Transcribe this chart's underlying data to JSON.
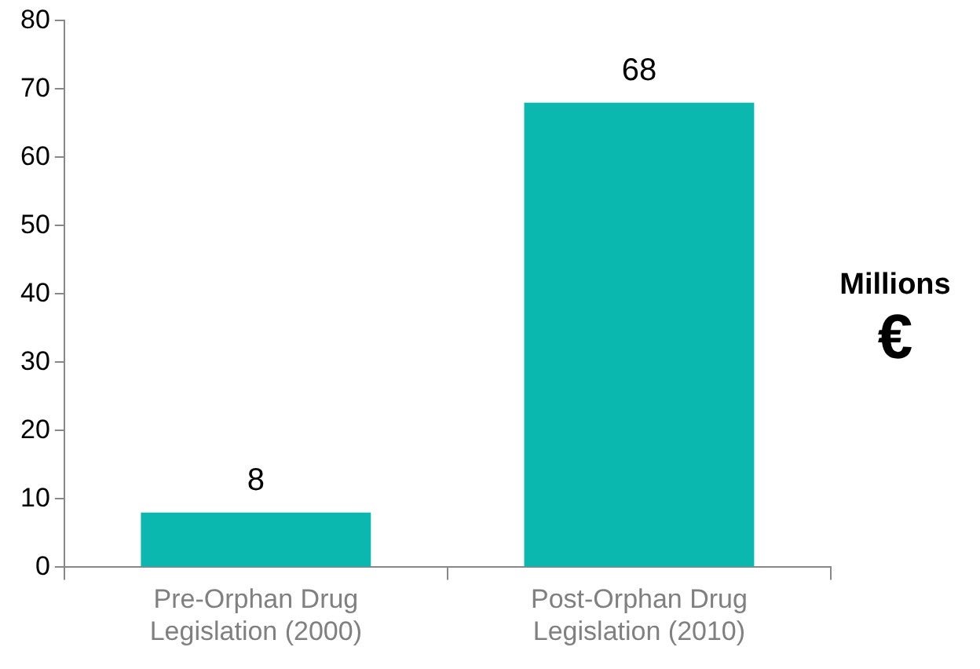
{
  "chart_data": {
    "type": "bar",
    "ylabel": "Millions €",
    "categories": [
      "Pre-Orphan Drug Legislation (2000)",
      "Post-Orphan Drug Legislation (2010)"
    ],
    "values": [
      8,
      68
    ],
    "color": "#0bb8b0",
    "ylim": [
      0,
      80
    ],
    "yticks": [
      0,
      10,
      20,
      30,
      40,
      50,
      60,
      70,
      80
    ],
    "grid": false,
    "data_labels": true
  }
}
